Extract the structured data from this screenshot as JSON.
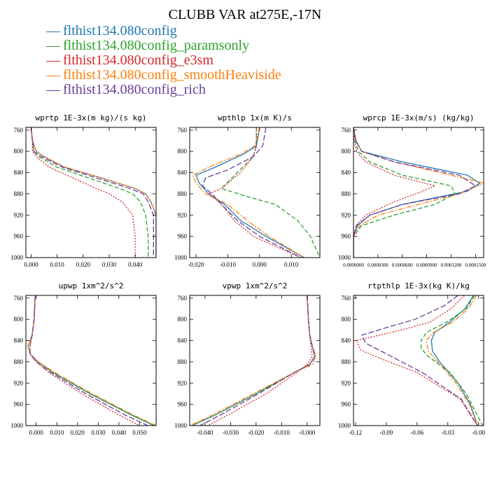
{
  "figure": {
    "title": "CLUBB VAR at275E,-17N"
  },
  "legend": [
    {
      "label": "flthist134.080config",
      "color": "#1f77b4",
      "dash": ""
    },
    {
      "label": "flthist134.080config_paramsonly",
      "color": "#2ca02c",
      "dash": "6,3"
    },
    {
      "label": "flthist134.080config_e3sm",
      "color": "#d62728",
      "dash": "2,2"
    },
    {
      "label": "flthist134.080config_smoothHeaviside",
      "color": "#ff7f0e",
      "dash": "7,2,2,2"
    },
    {
      "label": "flthist134.080config_rich",
      "color": "#6a3d9a",
      "dash": "8,3"
    }
  ],
  "chart_data": [
    {
      "type": "line",
      "title": "wprtp  1E-3x(m kg)/(s kg)",
      "xlim": [
        -0.002,
        0.048
      ],
      "ylim": [
        755,
        1000
      ],
      "ylim_inverted": true,
      "xticks": [
        "0.000",
        "0.010",
        "0.020",
        "0.030",
        "0.040"
      ],
      "xtick_values": [
        0.0,
        0.01,
        0.02,
        0.03,
        0.04
      ],
      "yticks": [
        "760",
        "800",
        "840",
        "880",
        "920",
        "960",
        "1000"
      ],
      "ytick_values": [
        760,
        800,
        840,
        880,
        920,
        960,
        1000
      ],
      "series": [
        {
          "y": [
            755,
            780,
            800,
            810,
            830,
            850,
            870,
            880,
            895,
            920,
            960,
            1000
          ],
          "x": [
            0.0,
            0.0005,
            0.002,
            0.005,
            0.013,
            0.027,
            0.04,
            0.044,
            0.046,
            0.048,
            0.048,
            0.048
          ]
        },
        {
          "y": [
            755,
            780,
            800,
            810,
            830,
            850,
            870,
            880,
            895,
            920,
            960,
            1000
          ],
          "x": [
            0.0,
            0.0005,
            0.001,
            0.003,
            0.01,
            0.022,
            0.034,
            0.039,
            0.042,
            0.044,
            0.045,
            0.045
          ]
        },
        {
          "y": [
            755,
            780,
            800,
            810,
            830,
            850,
            870,
            880,
            895,
            920,
            960,
            1000
          ],
          "x": [
            0.0,
            0.0005,
            0.0005,
            0.002,
            0.007,
            0.016,
            0.025,
            0.03,
            0.035,
            0.039,
            0.04,
            0.04
          ]
        },
        {
          "y": [
            755,
            780,
            800,
            810,
            830,
            850,
            870,
            880,
            895,
            920,
            960,
            1000
          ],
          "x": [
            0.0,
            0.0005,
            0.002,
            0.005,
            0.013,
            0.027,
            0.04,
            0.044,
            0.046,
            0.048,
            0.048,
            0.048
          ]
        },
        {
          "y": [
            755,
            780,
            800,
            810,
            830,
            850,
            870,
            880,
            895,
            920,
            960,
            1000
          ],
          "x": [
            0.0,
            0.0005,
            0.001,
            0.004,
            0.012,
            0.025,
            0.038,
            0.043,
            0.045,
            0.047,
            0.047,
            0.047
          ]
        }
      ]
    },
    {
      "type": "line",
      "title": "wpthlp  1x(m K)/s",
      "xlim": [
        -0.022,
        0.019
      ],
      "ylim": [
        755,
        1000
      ],
      "ylim_inverted": true,
      "xticks": [
        "-0.020",
        "-0.010",
        "0.000",
        "0.010"
      ],
      "xtick_values": [
        -0.02,
        -0.01,
        0.0,
        0.01
      ],
      "yticks": [
        "760",
        "800",
        "840",
        "880",
        "920",
        "960",
        "1000"
      ],
      "ytick_values": [
        760,
        800,
        840,
        880,
        920,
        960,
        1000
      ],
      "series": [
        {
          "y": [
            755,
            790,
            805,
            830,
            845,
            860,
            880,
            900,
            930,
            960,
            1000
          ],
          "x": [
            0.0,
            -0.001,
            -0.005,
            -0.014,
            -0.02,
            -0.019,
            -0.016,
            -0.011,
            -0.006,
            0.002,
            0.014
          ]
        },
        {
          "y": [
            755,
            790,
            810,
            840,
            870,
            885,
            900,
            930,
            960,
            1000
          ],
          "x": [
            -0.001,
            -0.001,
            -0.002,
            -0.007,
            -0.012,
            -0.004,
            0.005,
            0.012,
            0.016,
            0.019
          ]
        },
        {
          "y": [
            755,
            790,
            810,
            840,
            870,
            880,
            900,
            930,
            960,
            1000
          ],
          "x": [
            -0.001,
            -0.001,
            -0.002,
            -0.006,
            -0.012,
            -0.016,
            -0.012,
            -0.008,
            -0.002,
            0.013
          ]
        },
        {
          "y": [
            755,
            790,
            805,
            830,
            845,
            860,
            880,
            900,
            930,
            960,
            1000
          ],
          "x": [
            0.0,
            -0.0015,
            -0.006,
            -0.016,
            -0.021,
            -0.02,
            -0.017,
            -0.01,
            -0.004,
            0.003,
            0.014
          ]
        },
        {
          "y": [
            755,
            790,
            810,
            835,
            850,
            865,
            880,
            900,
            930,
            960,
            1000
          ],
          "x": [
            0.002,
            0.001,
            -0.002,
            -0.01,
            -0.017,
            -0.018,
            -0.015,
            -0.012,
            -0.007,
            0.0,
            0.013
          ]
        }
      ]
    },
    {
      "type": "line",
      "title": "wprcp  1E-3x(m/s) (kg/kg)",
      "xlim": [
        0.0,
        0.00016
      ],
      "ylim": [
        755,
        1000
      ],
      "ylim_inverted": true,
      "xticks": [
        "0.0000000",
        "0.0000300",
        "0.0000600",
        "0.0000900",
        "0.0001200",
        "0.0001500"
      ],
      "xtick_values": [
        0.0,
        3e-05,
        6e-05,
        9e-05,
        0.00012,
        0.00015
      ],
      "yticks": [
        "760",
        "800",
        "840",
        "880",
        "920",
        "960",
        "1000"
      ],
      "ytick_values": [
        760,
        800,
        840,
        880,
        920,
        960,
        1000
      ],
      "series": [
        {
          "y": [
            755,
            780,
            800,
            820,
            845,
            860,
            875,
            900,
            920,
            940,
            960,
            1000
          ],
          "x": [
            0.0,
            3e-06,
            1e-05,
            6e-05,
            0.00014,
            0.000155,
            0.00014,
            6e-05,
            2e-05,
            5e-06,
            0.0,
            0.0
          ]
        },
        {
          "y": [
            755,
            780,
            800,
            820,
            845,
            865,
            880,
            900,
            920,
            940,
            960,
            1000
          ],
          "x": [
            0.0,
            2e-06,
            6e-06,
            2e-05,
            6e-05,
            0.00012,
            0.000125,
            0.0001,
            5e-05,
            1e-05,
            0.0,
            0.0
          ]
        },
        {
          "y": [
            755,
            780,
            800,
            820,
            845,
            865,
            875,
            895,
            920,
            940,
            960,
            1000
          ],
          "x": [
            0.0,
            1e-06,
            4e-06,
            1.5e-05,
            5e-05,
            0.0001,
            8.5e-05,
            5e-05,
            1.5e-05,
            3e-06,
            0.0,
            0.0
          ]
        },
        {
          "y": [
            755,
            780,
            800,
            820,
            845,
            860,
            880,
            900,
            920,
            940,
            960,
            1000
          ],
          "x": [
            0.0,
            3e-06,
            1e-05,
            5e-05,
            0.00012,
            0.00016,
            0.00013,
            8e-05,
            3e-05,
            8e-06,
            0.0,
            0.0
          ]
        },
        {
          "y": [
            755,
            780,
            800,
            820,
            845,
            865,
            880,
            900,
            920,
            940,
            960,
            1000
          ],
          "x": [
            0.0,
            3e-06,
            1e-05,
            5e-05,
            0.00013,
            0.00015,
            0.00013,
            6e-05,
            2e-05,
            4e-06,
            0.0,
            0.0
          ]
        }
      ]
    },
    {
      "type": "line",
      "title": "upwp  1xm^2/s^2",
      "xlim": [
        -0.005,
        0.058
      ],
      "ylim": [
        755,
        1000
      ],
      "ylim_inverted": true,
      "xticks": [
        "0.000",
        "0.010",
        "0.020",
        "0.030",
        "0.040",
        "0.050"
      ],
      "xtick_values": [
        0.0,
        0.01,
        0.02,
        0.03,
        0.04,
        0.05
      ],
      "yticks": [
        "760",
        "800",
        "840",
        "880",
        "920",
        "960",
        "1000"
      ],
      "ytick_values": [
        760,
        800,
        840,
        880,
        920,
        960,
        1000
      ],
      "series": [
        {
          "y": [
            755,
            800,
            830,
            850,
            865,
            880,
            900,
            940,
            980,
            1000
          ],
          "x": [
            -0.0005,
            -0.001,
            -0.002,
            -0.004,
            -0.003,
            0.001,
            0.008,
            0.026,
            0.046,
            0.057
          ]
        },
        {
          "y": [
            755,
            800,
            830,
            850,
            865,
            880,
            900,
            940,
            980,
            1000
          ],
          "x": [
            -0.0005,
            -0.001,
            -0.002,
            -0.004,
            -0.003,
            0.001,
            0.008,
            0.026,
            0.046,
            0.057
          ]
        },
        {
          "y": [
            755,
            800,
            830,
            850,
            865,
            880,
            900,
            940,
            980,
            1000
          ],
          "x": [
            -0.0005,
            -0.001,
            -0.002,
            -0.003,
            -0.003,
            0.0,
            0.006,
            0.022,
            0.04,
            0.05
          ]
        },
        {
          "y": [
            755,
            800,
            830,
            850,
            865,
            880,
            900,
            940,
            980,
            1000
          ],
          "x": [
            -0.0005,
            -0.001,
            -0.002,
            -0.004,
            -0.003,
            0.001,
            0.009,
            0.027,
            0.047,
            0.058
          ]
        },
        {
          "y": [
            755,
            800,
            830,
            850,
            865,
            880,
            900,
            940,
            980,
            1000
          ],
          "x": [
            -0.0005,
            -0.001,
            -0.002,
            -0.003,
            -0.003,
            0.0,
            0.007,
            0.024,
            0.043,
            0.054
          ]
        }
      ]
    },
    {
      "type": "line",
      "title": "vpwp  1xm^2/s^2",
      "xlim": [
        -0.046,
        0.005
      ],
      "ylim": [
        755,
        1000
      ],
      "ylim_inverted": true,
      "xticks": [
        "-0.040",
        "-0.030",
        "-0.020",
        "-0.010",
        "-0.000"
      ],
      "xtick_values": [
        -0.04,
        -0.03,
        -0.02,
        -0.01,
        0.0
      ],
      "yticks": [
        "760",
        "800",
        "840",
        "880",
        "920",
        "960",
        "1000"
      ],
      "ytick_values": [
        760,
        800,
        840,
        880,
        920,
        960,
        1000
      ],
      "series": [
        {
          "y": [
            755,
            800,
            830,
            850,
            870,
            885,
            900,
            940,
            980,
            1000
          ],
          "x": [
            0.0,
            0.0005,
            0.001,
            0.002,
            0.003,
            0.001,
            -0.005,
            -0.02,
            -0.036,
            -0.045
          ]
        },
        {
          "y": [
            755,
            800,
            830,
            850,
            870,
            885,
            900,
            940,
            980,
            1000
          ],
          "x": [
            0.0,
            0.0005,
            0.001,
            0.002,
            0.003,
            0.001,
            -0.005,
            -0.02,
            -0.036,
            -0.045
          ]
        },
        {
          "y": [
            755,
            800,
            830,
            850,
            870,
            885,
            900,
            940,
            980,
            1000
          ],
          "x": [
            0.0,
            0.0005,
            0.001,
            0.0015,
            0.002,
            0.0,
            -0.004,
            -0.016,
            -0.031,
            -0.039
          ]
        },
        {
          "y": [
            755,
            800,
            830,
            850,
            870,
            885,
            900,
            940,
            980,
            1000
          ],
          "x": [
            0.0,
            0.0005,
            0.001,
            0.002,
            0.0035,
            0.002,
            -0.005,
            -0.021,
            -0.037,
            -0.046
          ]
        },
        {
          "y": [
            755,
            800,
            830,
            850,
            870,
            885,
            900,
            940,
            980,
            1000
          ],
          "x": [
            0.0,
            0.0005,
            0.001,
            0.002,
            0.003,
            0.001,
            -0.005,
            -0.019,
            -0.034,
            -0.042
          ]
        }
      ]
    },
    {
      "type": "line",
      "title": "rtpthlp  1E-3x(kg K)/kg",
      "xlim": [
        -0.122,
        0.005
      ],
      "ylim": [
        755,
        1000
      ],
      "ylim_inverted": true,
      "xticks": [
        "-0.12",
        "-0.09",
        "-0.06",
        "-0.03",
        "-0.00"
      ],
      "xtick_values": [
        -0.12,
        -0.09,
        -0.06,
        -0.03,
        0.0
      ],
      "yticks": [
        "760",
        "800",
        "840",
        "880",
        "920",
        "960",
        "1000"
      ],
      "ytick_values": [
        760,
        800,
        840,
        880,
        920,
        960,
        1000
      ],
      "series": [
        {
          "y": [
            755,
            780,
            805,
            825,
            840,
            860,
            880,
            920,
            960,
            1000
          ],
          "x": [
            -0.005,
            -0.013,
            -0.028,
            -0.043,
            -0.046,
            -0.045,
            -0.038,
            -0.02,
            -0.008,
            -0.001
          ]
        },
        {
          "y": [
            755,
            780,
            805,
            825,
            840,
            855,
            870,
            900,
            940,
            1000
          ],
          "x": [
            -0.004,
            -0.012,
            -0.031,
            -0.051,
            -0.056,
            -0.056,
            -0.049,
            -0.028,
            -0.012,
            0.004
          ]
        },
        {
          "y": [
            755,
            780,
            805,
            820,
            840,
            858,
            872,
            900,
            950,
            1000
          ],
          "x": [
            -0.014,
            -0.027,
            -0.047,
            -0.075,
            -0.119,
            -0.115,
            -0.098,
            -0.06,
            -0.018,
            -0.001
          ]
        },
        {
          "y": [
            755,
            780,
            805,
            825,
            840,
            860,
            880,
            920,
            960,
            1000
          ],
          "x": [
            -0.002,
            -0.01,
            -0.025,
            -0.044,
            -0.051,
            -0.049,
            -0.04,
            -0.022,
            -0.009,
            -0.001
          ]
        },
        {
          "y": [
            755,
            775,
            800,
            815,
            830,
            845,
            865,
            900,
            950,
            1000
          ],
          "x": [
            -0.02,
            -0.034,
            -0.062,
            -0.089,
            -0.114,
            -0.11,
            -0.09,
            -0.055,
            -0.017,
            -0.001
          ]
        }
      ]
    }
  ]
}
